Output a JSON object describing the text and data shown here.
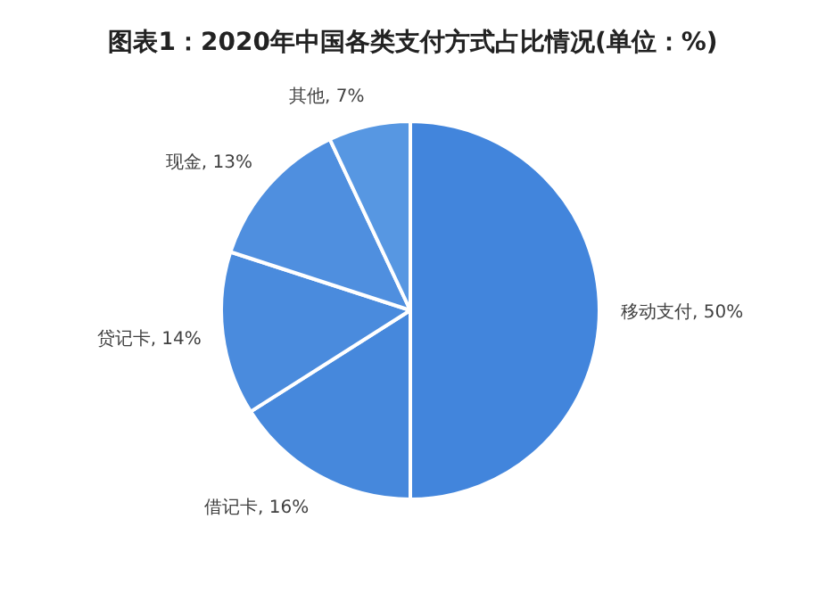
{
  "chart_data": {
    "type": "pie",
    "title": "图表1：2020年中国各类支付方式占比情况(单位：%)",
    "categories": [
      "移动支付",
      "借记卡",
      "贷记卡",
      "现金",
      "其他"
    ],
    "values": [
      50,
      16,
      14,
      13,
      7
    ],
    "colors": [
      "#4285dc",
      "#4688dc",
      "#4a8bdd",
      "#4f8fdf",
      "#5797e2"
    ],
    "value_labels": [
      "50%",
      "16%",
      "14%",
      "13%",
      "7%"
    ]
  }
}
